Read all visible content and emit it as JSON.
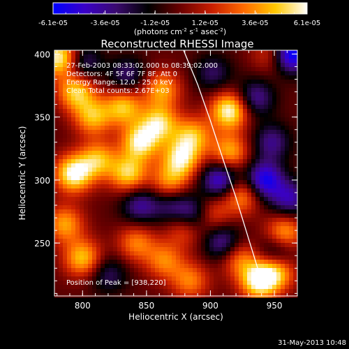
{
  "colorbar": {
    "ticks": [
      "-6.1e-05",
      "-3.6e-05",
      "-1.2e-05",
      "1.2e-05",
      "3.6e-05",
      "6.1e-05"
    ],
    "units_pre": "(photons cm",
    "units_exp1": "-2",
    "units_mid": " s",
    "units_exp2": "-1",
    "units_post": " asec",
    "units_exp3": "-2",
    "units_close": ")",
    "range": [
      -6.1e-05,
      6.1e-05
    ],
    "colormap_stops": [
      "#0000ff",
      "#3a00c8",
      "#3a0a6e",
      "#000000",
      "#6a0000",
      "#c81e00",
      "#ff6a00",
      "#ffc800",
      "#ffffff"
    ]
  },
  "chart_data": {
    "type": "heatmap",
    "title": "Reconstructed RHESSI Image",
    "xlabel": "Heliocentric X (arcsec)",
    "ylabel": "Heliocentric Y (arcsec)",
    "xlim": [
      778,
      968
    ],
    "ylim": [
      208,
      403
    ],
    "xticks": [
      800,
      850,
      900,
      950
    ],
    "yticks": [
      250,
      300,
      350,
      400
    ],
    "annotations": [
      "27-Feb-2003 08:33:02.000 to 08:39:02.000",
      "Detectors: 4F 5F 6F 7F 8F, Att 0",
      "Energy Range: 12.0 - 25.0 keV",
      "Clean     Total counts: 2.67E+03"
    ],
    "peak_label": "Position of Peak = [938,220]",
    "peak": [
      938,
      220
    ],
    "limb_curve": {
      "x": [
        879,
        890,
        900,
        910,
        920,
        930,
        940
      ],
      "y": [
        403,
        376,
        347,
        316,
        286,
        253,
        220
      ]
    },
    "bright_sources": [
      {
        "x": 782,
        "y": 397,
        "v": 1.0
      },
      {
        "x": 795,
        "y": 370,
        "v": 0.8
      },
      {
        "x": 808,
        "y": 350,
        "v": 0.7
      },
      {
        "x": 832,
        "y": 358,
        "v": 0.75
      },
      {
        "x": 862,
        "y": 372,
        "v": 0.65
      },
      {
        "x": 845,
        "y": 330,
        "v": 0.9
      },
      {
        "x": 860,
        "y": 345,
        "v": 0.8
      },
      {
        "x": 877,
        "y": 317,
        "v": 0.85
      },
      {
        "x": 886,
        "y": 335,
        "v": 0.7
      },
      {
        "x": 812,
        "y": 316,
        "v": 0.7
      },
      {
        "x": 793,
        "y": 305,
        "v": 1.0
      },
      {
        "x": 836,
        "y": 305,
        "v": 0.8
      },
      {
        "x": 868,
        "y": 298,
        "v": 0.6
      },
      {
        "x": 915,
        "y": 355,
        "v": 1.0
      },
      {
        "x": 915,
        "y": 322,
        "v": 0.7
      },
      {
        "x": 924,
        "y": 288,
        "v": 0.65
      },
      {
        "x": 958,
        "y": 258,
        "v": 0.7
      },
      {
        "x": 900,
        "y": 273,
        "v": 0.55
      },
      {
        "x": 786,
        "y": 265,
        "v": 0.65
      },
      {
        "x": 800,
        "y": 238,
        "v": 0.75
      },
      {
        "x": 842,
        "y": 250,
        "v": 0.55
      },
      {
        "x": 864,
        "y": 236,
        "v": 0.55
      },
      {
        "x": 880,
        "y": 262,
        "v": 0.5
      },
      {
        "x": 884,
        "y": 220,
        "v": 0.55
      },
      {
        "x": 922,
        "y": 238,
        "v": 0.55
      },
      {
        "x": 938,
        "y": 220,
        "v": 1.0
      },
      {
        "x": 952,
        "y": 228,
        "v": 0.75
      },
      {
        "x": 948,
        "y": 400,
        "v": 0.4
      }
    ],
    "dark_sources": [
      {
        "x": 963,
        "y": 400,
        "v": -1.0
      },
      {
        "x": 935,
        "y": 365,
        "v": -0.55
      },
      {
        "x": 948,
        "y": 330,
        "v": -0.5
      },
      {
        "x": 942,
        "y": 300,
        "v": -0.85
      },
      {
        "x": 908,
        "y": 300,
        "v": -0.8
      },
      {
        "x": 888,
        "y": 272,
        "v": -0.7
      },
      {
        "x": 962,
        "y": 285,
        "v": -0.6
      },
      {
        "x": 910,
        "y": 250,
        "v": -0.6
      },
      {
        "x": 952,
        "y": 242,
        "v": -0.55
      },
      {
        "x": 800,
        "y": 393,
        "v": -0.5
      },
      {
        "x": 835,
        "y": 383,
        "v": -0.45
      },
      {
        "x": 845,
        "y": 280,
        "v": -0.55
      },
      {
        "x": 870,
        "y": 280,
        "v": -0.45
      },
      {
        "x": 820,
        "y": 225,
        "v": -0.4
      },
      {
        "x": 902,
        "y": 385,
        "v": -0.4
      }
    ]
  },
  "footer": {
    "timestamp": "31-May-2013 10:48"
  }
}
